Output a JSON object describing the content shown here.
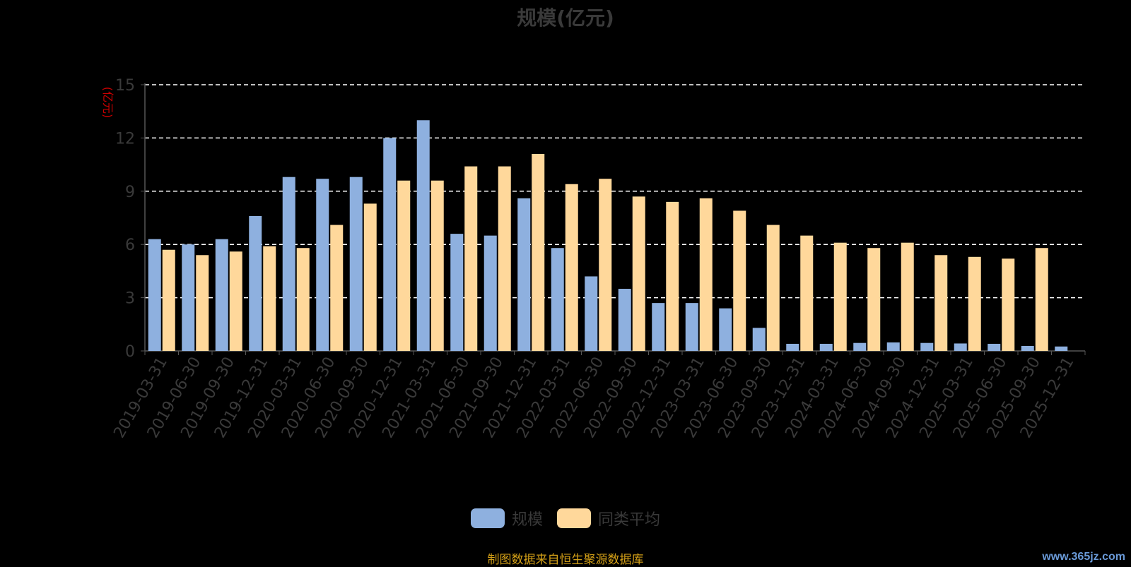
{
  "chart_data": {
    "type": "bar",
    "title": "规模(亿元)",
    "ylabel": "(亿元)",
    "xlabel": "",
    "ylim": [
      0,
      15
    ],
    "yticks": [
      0,
      3,
      6,
      9,
      12,
      15
    ],
    "grid": true,
    "legend_position": "bottom",
    "categories": [
      "2019-03-31",
      "2019-06-30",
      "2019-09-30",
      "2019-12-31",
      "2020-03-31",
      "2020-06-30",
      "2020-09-30",
      "2020-12-31",
      "2021-03-31",
      "2021-06-30",
      "2021-09-30",
      "2021-12-31",
      "2022-03-31",
      "2022-06-30",
      "2022-09-30",
      "2022-12-31",
      "2023-03-31",
      "2023-06-30",
      "2023-09-30",
      "2023-12-31",
      "2024-03-31",
      "2024-06-30",
      "2024-09-30",
      "2024-12-31",
      "2025-03-31",
      "2025-06-30",
      "2025-09-30",
      "2025-12-31"
    ],
    "series": [
      {
        "name": "规模",
        "color": "#8eb0df",
        "values": [
          6.3,
          6.0,
          6.3,
          7.6,
          9.8,
          9.7,
          9.8,
          12.0,
          13.0,
          6.6,
          6.5,
          8.6,
          5.8,
          4.2,
          3.5,
          2.7,
          2.7,
          2.4,
          1.3,
          0.4,
          0.4,
          0.45,
          0.48,
          0.45,
          0.42,
          0.4,
          0.28,
          0.25
        ]
      },
      {
        "name": "同类平均",
        "color": "#ffd89b",
        "values": [
          5.7,
          5.4,
          5.6,
          5.9,
          5.8,
          7.1,
          8.3,
          9.6,
          9.6,
          10.4,
          10.4,
          11.1,
          9.4,
          9.7,
          8.7,
          8.4,
          8.6,
          7.9,
          7.1,
          6.5,
          6.1,
          5.8,
          6.1,
          5.4,
          5.3,
          5.2,
          5.8,
          null
        ]
      }
    ]
  },
  "source_note": "制图数据来自恒生聚源数据库",
  "watermark": "www.365jz.com",
  "colors": {
    "axis_text": "#3a3a3a",
    "ylabel": "#cc0000",
    "grid": "#ffffff",
    "source": "#d4a017"
  }
}
